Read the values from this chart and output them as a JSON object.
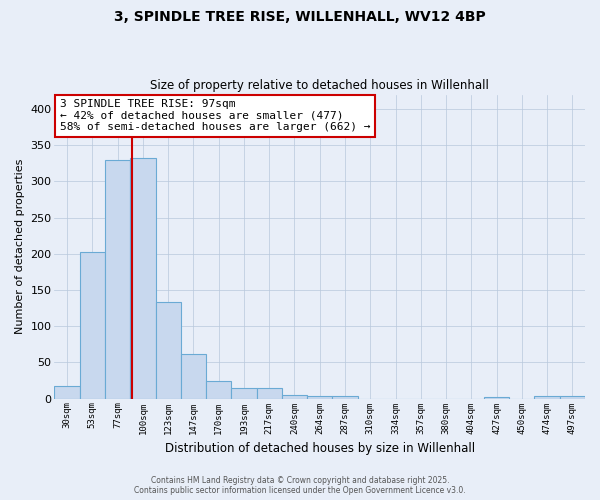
{
  "title_line1": "3, SPINDLE TREE RISE, WILLENHALL, WV12 4BP",
  "title_line2": "Size of property relative to detached houses in Willenhall",
  "xlabel": "Distribution of detached houses by size in Willenhall",
  "ylabel": "Number of detached properties",
  "bar_color": "#c8d8ee",
  "bar_edge_color": "#6aaad4",
  "vline_color": "#cc0000",
  "annotation_text": "3 SPINDLE TREE RISE: 97sqm\n← 42% of detached houses are smaller (477)\n58% of semi-detached houses are larger (662) →",
  "annotation_box_color": "white",
  "annotation_box_edge": "#cc0000",
  "background_color": "#e8eef8",
  "grid_color": "#b8c8dc",
  "categories": [
    "30sqm",
    "53sqm",
    "77sqm",
    "100sqm",
    "123sqm",
    "147sqm",
    "170sqm",
    "193sqm",
    "217sqm",
    "240sqm",
    "264sqm",
    "287sqm",
    "310sqm",
    "334sqm",
    "357sqm",
    "380sqm",
    "404sqm",
    "427sqm",
    "450sqm",
    "474sqm",
    "497sqm"
  ],
  "values": [
    18,
    202,
    330,
    333,
    133,
    62,
    25,
    15,
    15,
    5,
    3,
    3,
    0,
    0,
    0,
    0,
    0,
    2,
    0,
    3,
    4
  ],
  "ylim": [
    0,
    420
  ],
  "yticks": [
    0,
    50,
    100,
    150,
    200,
    250,
    300,
    350,
    400
  ],
  "vline_pos": 2.57,
  "footer_line1": "Contains HM Land Registry data © Crown copyright and database right 2025.",
  "footer_line2": "Contains public sector information licensed under the Open Government Licence v3.0."
}
